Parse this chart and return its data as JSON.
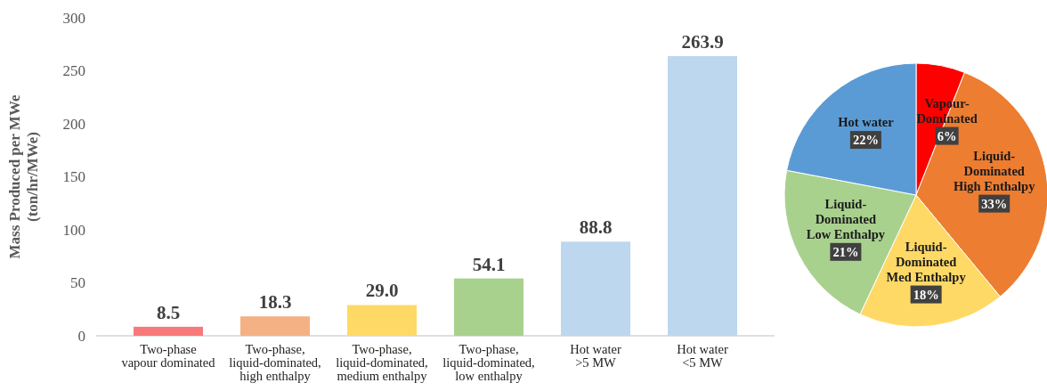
{
  "chart_data": [
    {
      "type": "bar",
      "ylabel": "Mass Produced per MWe\n(ton/hr/MWe)",
      "categories": [
        "Two-phase\nvapour dominated",
        "Two-phase,\nliquid-dominated,\nhigh enthalpy",
        "Two-phase,\nliquid-dominated,\nmedium enthalpy",
        "Two-phase,\nliquid-dominated,\nlow enthalpy",
        "Hot water\n>5 MW",
        "Hot water\n<5 MW"
      ],
      "values": [
        8.5,
        18.3,
        29.0,
        54.1,
        88.8,
        263.9
      ],
      "colors": [
        "#f8797a",
        "#f4b183",
        "#ffd966",
        "#a9d18e",
        "#bdd7ee",
        "#bdd7ee"
      ],
      "value_labels": [
        "8.5",
        "18.3",
        "29.0",
        "54.1",
        "88.8",
        "263.9"
      ],
      "ylim": [
        0,
        300
      ],
      "yticks": [
        0,
        50,
        100,
        150,
        200,
        250,
        300
      ],
      "grid": false
    },
    {
      "type": "pie",
      "categories": [
        "Vapour-\nDominated",
        "Liquid-\nDominated\nHigh Enthalpy",
        "Liquid-\nDominated\nMed Enthalpy",
        "Liquid-\nDominated\nLow Enthalpy",
        "Hot water"
      ],
      "values": [
        6,
        33,
        18,
        21,
        22
      ],
      "colors": [
        "#ff0000",
        "#ed7d31",
        "#ffd966",
        "#a9d18e",
        "#5b9bd5"
      ],
      "value_labels": [
        "6%",
        "33%",
        "18%",
        "21%",
        "22%"
      ]
    }
  ]
}
